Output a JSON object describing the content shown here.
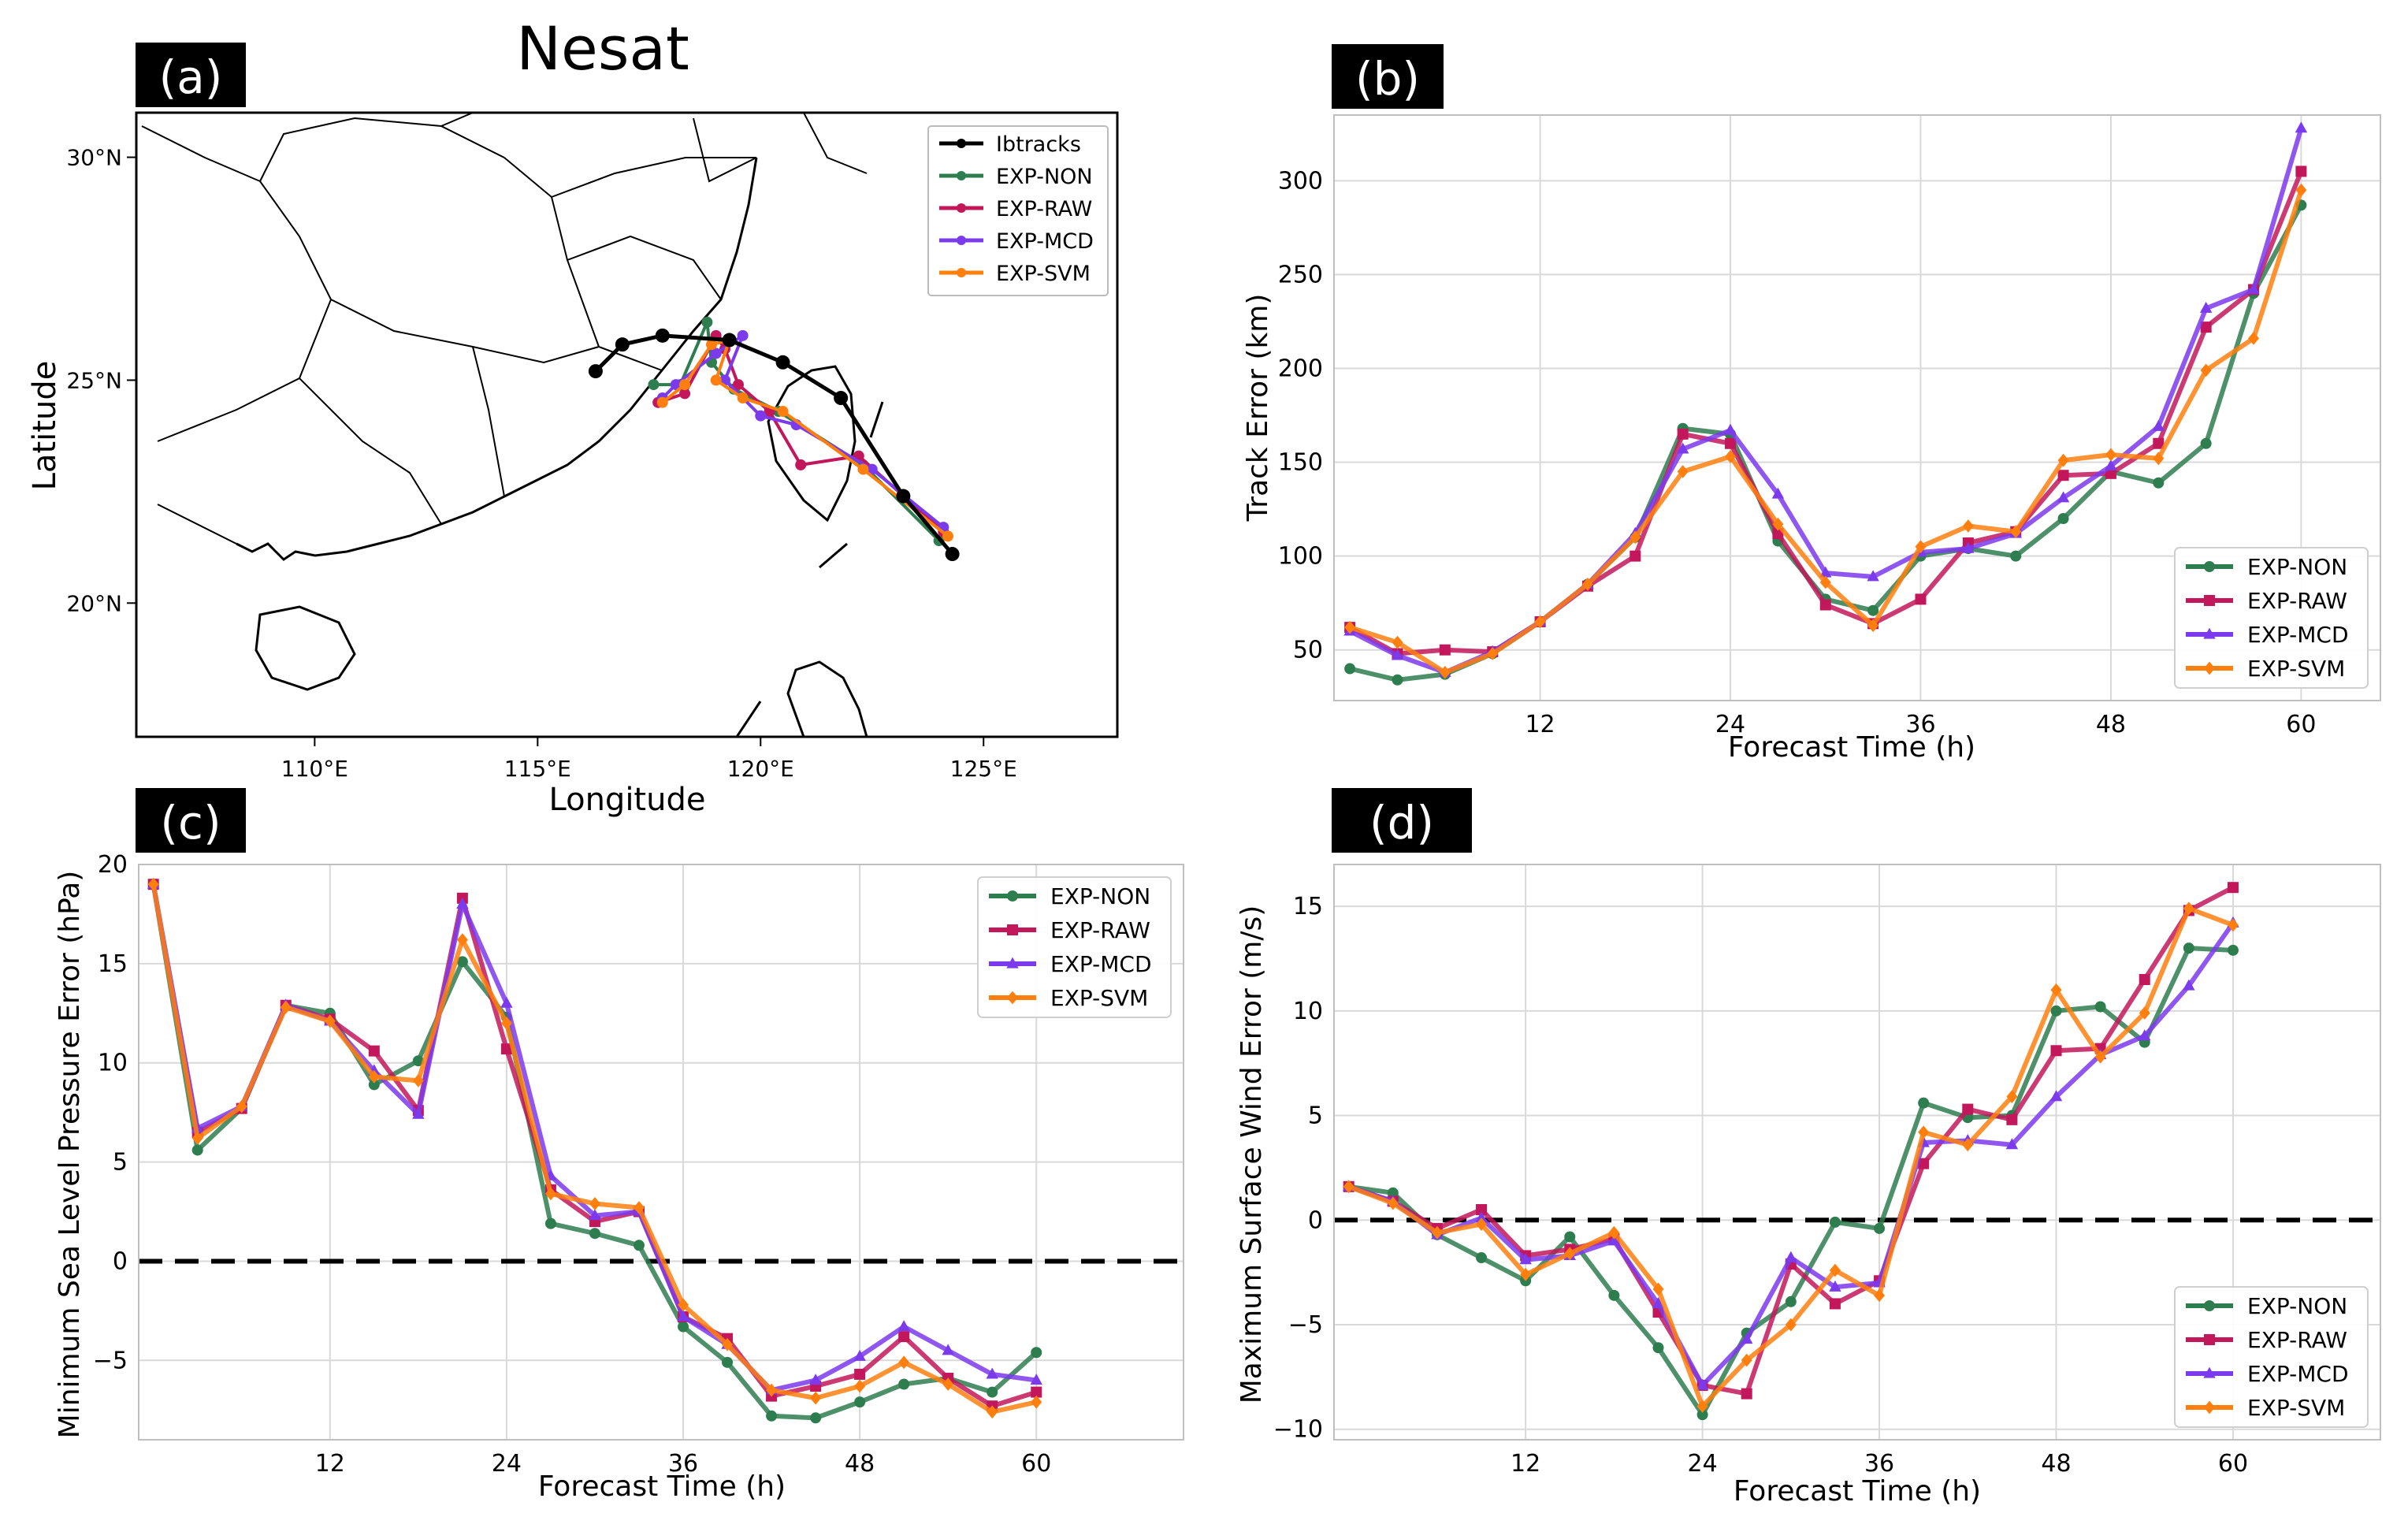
{
  "colors": {
    "ibtracks": "#000000",
    "exp_non": "#2e7d4f",
    "exp_raw": "#c2185b",
    "exp_mcd": "#7c3aed",
    "exp_svm": "#ff7f0e"
  },
  "map": {
    "panel_tag": "(a)",
    "title": "Nesat",
    "xlabel": "Longitude",
    "ylabel": "Latitude",
    "lon_range": [
      106,
      128
    ],
    "lat_range": [
      17,
      31
    ],
    "xticks": [
      110,
      115,
      120,
      125
    ],
    "xtick_labels": [
      "110°E",
      "115°E",
      "120°E",
      "125°E"
    ],
    "yticks": [
      20,
      25,
      30
    ],
    "ytick_labels": [
      "20°N",
      "25°N",
      "30°N"
    ],
    "legend": [
      "Ibtracks",
      "EXP-NON",
      "EXP-RAW",
      "EXP-MCD",
      "EXP-SVM"
    ],
    "tracks": {
      "ibtracks": [
        [
          124.3,
          21.1
        ],
        [
          123.2,
          22.4
        ],
        [
          121.8,
          24.6
        ],
        [
          120.5,
          25.4
        ],
        [
          119.3,
          25.9
        ],
        [
          117.8,
          26.0
        ],
        [
          116.9,
          25.8
        ],
        [
          116.3,
          25.2
        ]
      ],
      "exp_non": [
        [
          124.0,
          21.4
        ],
        [
          122.3,
          23.1
        ],
        [
          120.4,
          24.3
        ],
        [
          119.4,
          24.8
        ],
        [
          118.9,
          25.4
        ],
        [
          118.8,
          26.3
        ],
        [
          118.2,
          24.9
        ],
        [
          117.6,
          24.9
        ]
      ],
      "exp_raw": [
        [
          124.1,
          21.6
        ],
        [
          122.2,
          23.3
        ],
        [
          120.9,
          23.1
        ],
        [
          120.2,
          24.3
        ],
        [
          119.5,
          24.9
        ],
        [
          119.2,
          25.7
        ],
        [
          119.0,
          26.0
        ],
        [
          118.3,
          24.7
        ],
        [
          117.7,
          24.5
        ]
      ],
      "exp_mcd": [
        [
          124.1,
          21.7
        ],
        [
          122.5,
          23.0
        ],
        [
          120.8,
          24.0
        ],
        [
          120.0,
          24.2
        ],
        [
          119.2,
          25.0
        ],
        [
          119.6,
          26.0
        ],
        [
          119.0,
          25.6
        ],
        [
          118.1,
          24.9
        ],
        [
          117.8,
          24.6
        ]
      ],
      "exp_svm": [
        [
          124.2,
          21.5
        ],
        [
          122.3,
          23.0
        ],
        [
          120.5,
          24.3
        ],
        [
          119.6,
          24.6
        ],
        [
          119.0,
          25.0
        ],
        [
          119.3,
          25.9
        ],
        [
          118.9,
          25.8
        ],
        [
          118.3,
          24.9
        ],
        [
          117.8,
          24.5
        ]
      ]
    }
  },
  "chart_data": [
    {
      "type": "line",
      "panel_tag": "(b)",
      "xlabel": "Forecast Time (h)",
      "ylabel": "Track Error (km)",
      "xlim": [
        -1,
        65
      ],
      "ylim": [
        23,
        335
      ],
      "xticks": [
        12,
        24,
        36,
        48,
        60
      ],
      "yticks": [
        50,
        100,
        150,
        200,
        250,
        300
      ],
      "grid": true,
      "legend_position": "lower-right",
      "x": [
        0,
        3,
        6,
        9,
        12,
        15,
        18,
        21,
        24,
        27,
        30,
        33,
        36,
        39,
        42,
        45,
        48,
        51,
        54,
        57,
        60
      ],
      "series": [
        {
          "name": "EXP-NON",
          "color_key": "exp_non",
          "marker": "circle",
          "values": [
            40,
            34,
            37,
            48,
            65,
            85,
            110,
            168,
            165,
            108,
            77,
            71,
            100,
            104,
            100,
            120,
            145,
            139,
            160,
            240,
            287
          ]
        },
        {
          "name": "EXP-RAW",
          "color_key": "exp_raw",
          "marker": "square",
          "values": [
            62,
            48,
            50,
            49,
            65,
            84,
            100,
            165,
            160,
            112,
            74,
            64,
            77,
            107,
            113,
            143,
            144,
            160,
            222,
            242,
            305
          ]
        },
        {
          "name": "EXP-MCD",
          "color_key": "exp_mcd",
          "marker": "triangle",
          "values": [
            60,
            47,
            38,
            49,
            65,
            85,
            112,
            157,
            167,
            133,
            91,
            89,
            102,
            104,
            112,
            131,
            148,
            169,
            232,
            242,
            328
          ]
        },
        {
          "name": "EXP-SVM",
          "color_key": "exp_svm",
          "marker": "diamond",
          "values": [
            62,
            54,
            38,
            48,
            65,
            85,
            110,
            145,
            153,
            117,
            86,
            63,
            105,
            116,
            113,
            151,
            154,
            152,
            199,
            216,
            295
          ]
        }
      ]
    },
    {
      "type": "line",
      "panel_tag": "(c)",
      "xlabel": "Forecast Time (h)",
      "ylabel": "Minimum Sea Level Pressure Error (hPa)",
      "xlim": [
        -1,
        70
      ],
      "ylim": [
        -9,
        20
      ],
      "xticks": [
        12,
        24,
        36,
        48,
        60
      ],
      "yticks": [
        -5,
        0,
        5,
        10,
        15,
        20
      ],
      "ytick_labels": [
        "−5",
        "0",
        "5",
        "10",
        "15",
        "20"
      ],
      "grid": true,
      "zero_line": true,
      "legend_position": "top-right",
      "x": [
        0,
        3,
        6,
        9,
        12,
        15,
        18,
        21,
        24,
        27,
        30,
        33,
        36,
        39,
        42,
        45,
        48,
        51,
        54,
        57,
        60
      ],
      "series": [
        {
          "name": "EXP-NON",
          "color_key": "exp_non",
          "marker": "circle",
          "values": [
            19,
            5.6,
            7.7,
            12.9,
            12.5,
            8.9,
            10.1,
            15.1,
            12.3,
            1.9,
            1.4,
            0.8,
            -3.3,
            -5.1,
            -7.8,
            -7.9,
            -7.1,
            -6.2,
            -5.9,
            -6.6,
            -4.6
          ]
        },
        {
          "name": "EXP-RAW",
          "color_key": "exp_raw",
          "marker": "square",
          "values": [
            19,
            6.5,
            7.7,
            12.9,
            12.2,
            10.6,
            7.6,
            18.3,
            10.7,
            3.6,
            2.0,
            2.5,
            -2.8,
            -3.9,
            -6.8,
            -6.3,
            -5.7,
            -3.8,
            -5.9,
            -7.3,
            -6.6
          ]
        },
        {
          "name": "EXP-MCD",
          "color_key": "exp_mcd",
          "marker": "triangle",
          "values": [
            19,
            6.7,
            7.8,
            12.9,
            12.1,
            9.6,
            7.4,
            18.0,
            13.0,
            4.3,
            2.3,
            2.5,
            -2.8,
            -4.2,
            -6.5,
            -6.0,
            -4.8,
            -3.3,
            -4.5,
            -5.7,
            -6.0
          ]
        },
        {
          "name": "EXP-SVM",
          "color_key": "exp_svm",
          "marker": "diamond",
          "values": [
            19,
            6.2,
            7.8,
            12.8,
            12.1,
            9.3,
            9.1,
            16.2,
            12.0,
            3.4,
            2.9,
            2.7,
            -2.2,
            -4.2,
            -6.5,
            -6.9,
            -6.3,
            -5.1,
            -6.2,
            -7.6,
            -7.1
          ]
        }
      ]
    },
    {
      "type": "line",
      "panel_tag": "(d)",
      "xlabel": "Forecast Time (h)",
      "ylabel": "Maximum Surface Wind Error (m/s)",
      "xlim": [
        -1,
        70
      ],
      "ylim": [
        -10.5,
        17
      ],
      "xticks": [
        12,
        24,
        36,
        48,
        60
      ],
      "yticks": [
        -10,
        -5,
        0,
        5,
        10,
        15
      ],
      "ytick_labels": [
        "−10",
        "−5",
        "0",
        "5",
        "10",
        "15"
      ],
      "grid": true,
      "zero_line": true,
      "legend_position": "lower-right",
      "x": [
        0,
        3,
        6,
        9,
        12,
        15,
        18,
        21,
        24,
        27,
        30,
        33,
        36,
        39,
        42,
        45,
        48,
        51,
        54,
        57,
        60
      ],
      "series": [
        {
          "name": "EXP-NON",
          "color_key": "exp_non",
          "marker": "circle",
          "values": [
            1.6,
            1.3,
            -0.7,
            -1.8,
            -2.9,
            -0.8,
            -3.6,
            -6.1,
            -9.3,
            -5.4,
            -3.9,
            -0.1,
            -0.4,
            5.6,
            4.9,
            5.0,
            10.0,
            10.2,
            8.5,
            13.0,
            12.9
          ]
        },
        {
          "name": "EXP-RAW",
          "color_key": "exp_raw",
          "marker": "square",
          "values": [
            1.6,
            0.9,
            -0.4,
            0.5,
            -1.7,
            -1.4,
            -0.9,
            -4.4,
            -7.9,
            -8.3,
            -2.1,
            -4.0,
            -2.9,
            2.7,
            5.3,
            4.8,
            8.1,
            8.2,
            11.5,
            14.8,
            15.9
          ]
        },
        {
          "name": "EXP-MCD",
          "color_key": "exp_mcd",
          "marker": "triangle",
          "values": [
            1.6,
            0.9,
            -0.7,
            0.1,
            -1.9,
            -1.7,
            -1.0,
            -4.0,
            -7.9,
            -5.7,
            -1.8,
            -3.2,
            -3.0,
            3.7,
            3.8,
            3.6,
            5.9,
            7.9,
            8.8,
            11.2,
            14.2
          ]
        },
        {
          "name": "EXP-SVM",
          "color_key": "exp_svm",
          "marker": "diamond",
          "values": [
            1.6,
            0.8,
            -0.6,
            -0.2,
            -2.6,
            -1.6,
            -0.6,
            -3.3,
            -8.9,
            -6.7,
            -5.0,
            -2.4,
            -3.6,
            4.2,
            3.6,
            5.9,
            11.0,
            7.8,
            9.9,
            14.9,
            14.1
          ]
        }
      ]
    }
  ]
}
